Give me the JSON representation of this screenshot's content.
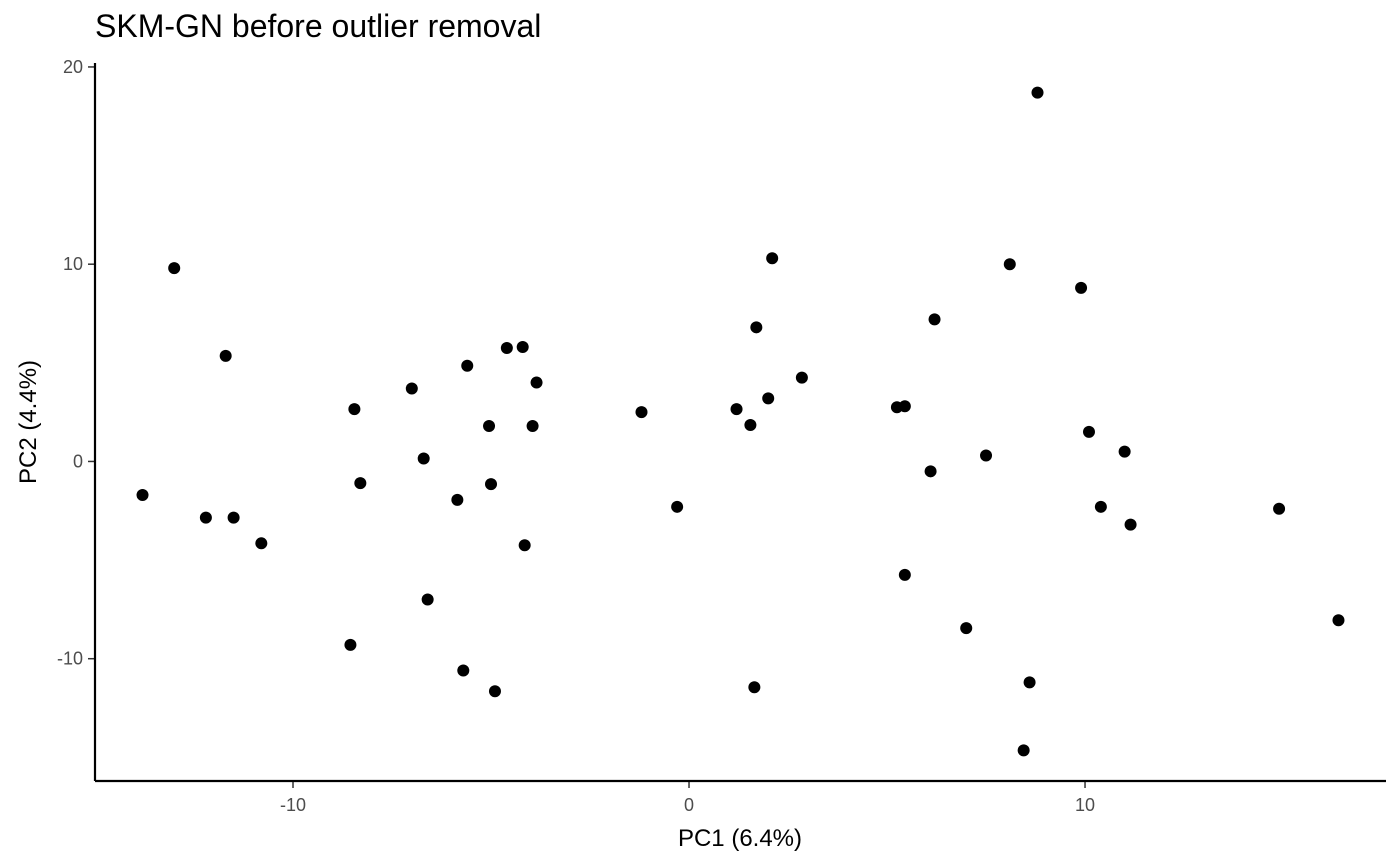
{
  "chart_data": {
    "type": "scatter",
    "title": "SKM-GN before outlier removal",
    "xlabel": "PC1 (6.4%)",
    "ylabel": "PC2 (4.4%)",
    "xlim": [
      -15,
      17.6
    ],
    "ylim": [
      -16.2,
      20.2
    ],
    "xticks": [
      -10,
      0,
      10
    ],
    "yticks": [
      -10,
      0,
      10,
      20
    ],
    "grid": false,
    "legend": "none",
    "point_color": "#000000",
    "points": [
      {
        "x": 8.8,
        "y": 18.7
      },
      {
        "x": -13.0,
        "y": 9.8
      },
      {
        "x": 2.1,
        "y": 10.3
      },
      {
        "x": 8.1,
        "y": 10.0
      },
      {
        "x": 9.9,
        "y": 8.8
      },
      {
        "x": 6.2,
        "y": 7.2
      },
      {
        "x": 1.7,
        "y": 6.8
      },
      {
        "x": -11.7,
        "y": 5.35
      },
      {
        "x": -4.6,
        "y": 5.75
      },
      {
        "x": -4.2,
        "y": 5.8
      },
      {
        "x": -5.6,
        "y": 4.85
      },
      {
        "x": 2.85,
        "y": 4.25
      },
      {
        "x": -3.85,
        "y": 4.0
      },
      {
        "x": -7.0,
        "y": 3.7
      },
      {
        "x": 2.0,
        "y": 3.2
      },
      {
        "x": 5.25,
        "y": 2.75
      },
      {
        "x": 5.45,
        "y": 2.8
      },
      {
        "x": -8.45,
        "y": 2.65
      },
      {
        "x": 1.2,
        "y": 2.65
      },
      {
        "x": -1.2,
        "y": 2.5
      },
      {
        "x": -5.05,
        "y": 1.8
      },
      {
        "x": -3.95,
        "y": 1.8
      },
      {
        "x": 1.55,
        "y": 1.85
      },
      {
        "x": 10.1,
        "y": 1.5
      },
      {
        "x": -6.7,
        "y": 0.15
      },
      {
        "x": 11.0,
        "y": 0.5
      },
      {
        "x": 7.5,
        "y": 0.3
      },
      {
        "x": 6.1,
        "y": -0.5
      },
      {
        "x": -8.3,
        "y": -1.1
      },
      {
        "x": -5.0,
        "y": -1.15
      },
      {
        "x": -13.8,
        "y": -1.7
      },
      {
        "x": -5.85,
        "y": -1.95
      },
      {
        "x": -0.3,
        "y": -2.3
      },
      {
        "x": 10.4,
        "y": -2.3
      },
      {
        "x": 14.9,
        "y": -2.4
      },
      {
        "x": -12.2,
        "y": -2.85
      },
      {
        "x": -11.5,
        "y": -2.85
      },
      {
        "x": 11.15,
        "y": -3.2
      },
      {
        "x": -10.8,
        "y": -4.15
      },
      {
        "x": -4.15,
        "y": -4.25
      },
      {
        "x": 5.45,
        "y": -5.75
      },
      {
        "x": -6.6,
        "y": -7.0
      },
      {
        "x": 16.4,
        "y": -8.05
      },
      {
        "x": 7.0,
        "y": -8.45
      },
      {
        "x": -8.55,
        "y": -9.3
      },
      {
        "x": -5.7,
        "y": -10.6
      },
      {
        "x": 8.6,
        "y": -11.2
      },
      {
        "x": 1.65,
        "y": -11.45
      },
      {
        "x": -4.9,
        "y": -11.65
      },
      {
        "x": 8.45,
        "y": -14.65
      }
    ]
  }
}
